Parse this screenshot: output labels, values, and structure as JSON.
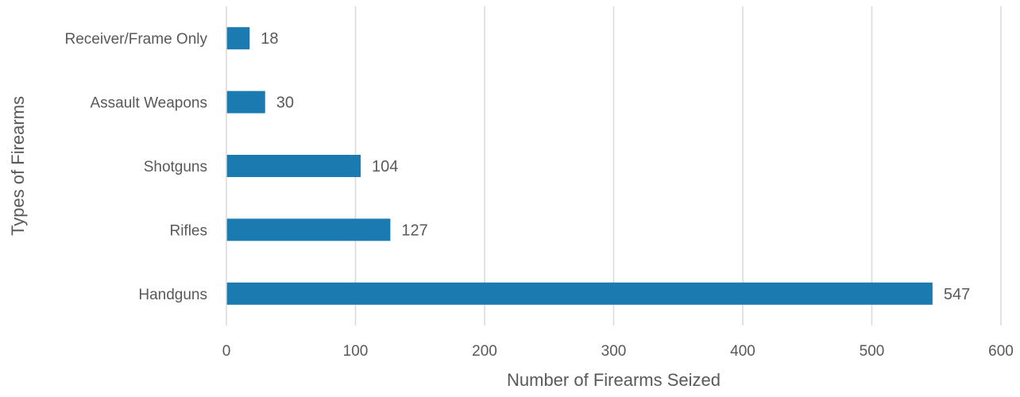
{
  "chart_data": {
    "type": "bar",
    "orientation": "horizontal",
    "title": "",
    "xlabel": "Number of Firearms Seized",
    "ylabel": "Types of Firearms",
    "categories": [
      "Receiver/Frame Only",
      "Assault Weapons",
      "Shotguns",
      "Rifles",
      "Handguns"
    ],
    "values": [
      18,
      30,
      104,
      127,
      547
    ],
    "xlim": [
      0,
      600
    ],
    "xticks": [
      "0",
      "100",
      "200",
      "300",
      "400",
      "500",
      "600"
    ],
    "grid": true,
    "legend": "none",
    "bar_color": "#1b7ab0",
    "grid_color": "#d9d9d9"
  }
}
